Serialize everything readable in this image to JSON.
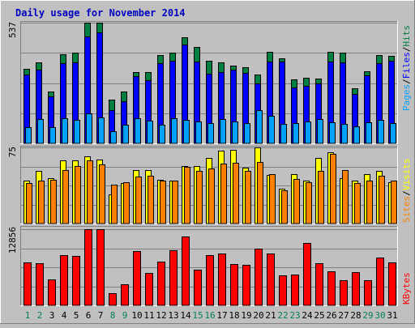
{
  "title": "Daily usage for November 2014",
  "chart_data": [
    {
      "type": "bar",
      "panel": "hits",
      "y_max_label": "537",
      "ylim": [
        0,
        537
      ],
      "grid": true,
      "categories": [
        "1",
        "2",
        "3",
        "4",
        "5",
        "6",
        "7",
        "8",
        "9",
        "10",
        "11",
        "12",
        "13",
        "14",
        "15",
        "16",
        "17",
        "18",
        "19",
        "20",
        "21",
        "22",
        "23",
        "24",
        "25",
        "26",
        "27",
        "28",
        "29",
        "30",
        "31"
      ],
      "weekend_days": [
        "1",
        "2",
        "8",
        "9",
        "15",
        "16",
        "22",
        "23",
        "29",
        "30"
      ],
      "legend": [
        {
          "name": "Pages",
          "color": "#00a0ff"
        },
        {
          "name": "Files",
          "color": "#0000ff"
        },
        {
          "name": "Hits",
          "color": "#008040"
        }
      ],
      "series": [
        {
          "name": "Hits",
          "color": "#008040",
          "values": [
            330,
            362,
            229,
            398,
            402,
            537,
            537,
            195,
            232,
            317,
            317,
            393,
            404,
            472,
            428,
            366,
            360,
            345,
            338,
            306,
            409,
            379,
            284,
            293,
            290,
            407,
            403,
            246,
            320,
            394,
            390
          ]
        },
        {
          "name": "Files",
          "color": "#0000ff",
          "values": [
            306,
            329,
            210,
            355,
            362,
            474,
            492,
            146,
            189,
            300,
            282,
            356,
            367,
            438,
            364,
            309,
            316,
            328,
            313,
            266,
            363,
            364,
            250,
            257,
            268,
            363,
            361,
            221,
            303,
            356,
            366
          ]
        },
        {
          "name": "Pages",
          "color": "#00a0ff",
          "values": [
            72,
            107,
            72,
            111,
            103,
            134,
            116,
            55,
            83,
            113,
            101,
            84,
            112,
            103,
            97,
            89,
            107,
            98,
            91,
            148,
            121,
            85,
            89,
            97,
            108,
            92,
            88,
            75,
            94,
            104,
            91
          ]
        }
      ]
    },
    {
      "type": "bar",
      "panel": "visits",
      "y_max_label": "75",
      "ylim": [
        0,
        75
      ],
      "grid": true,
      "legend": [
        {
          "name": "Sites",
          "color": "#ff8000"
        },
        {
          "name": "Visits",
          "color": "#ffff00"
        }
      ],
      "series": [
        {
          "name": "Visits",
          "color": "#ffff00",
          "values": [
            42,
            52,
            45,
            62,
            62,
            66,
            63,
            29,
            40,
            53,
            53,
            43,
            42,
            57,
            57,
            65,
            72,
            73,
            55,
            75,
            48,
            34,
            49,
            42,
            65,
            70,
            45,
            42,
            49,
            52,
            41
          ]
        },
        {
          "name": "Sites",
          "color": "#ff8000",
          "values": [
            40,
            42,
            43,
            53,
            57,
            62,
            58,
            38,
            41,
            46,
            47,
            42,
            42,
            56,
            52,
            54,
            59,
            60,
            52,
            61,
            49,
            33,
            44,
            41,
            52,
            69,
            53,
            40,
            42,
            47,
            42
          ]
        }
      ]
    },
    {
      "type": "bar",
      "panel": "kbytes",
      "y_max_label": "12856",
      "ylim": [
        0,
        12856
      ],
      "grid": true,
      "legend": [
        {
          "name": "KBytes",
          "color": "#ff0000"
        }
      ],
      "series": [
        {
          "name": "KBytes",
          "color": "#ff0000",
          "values": [
            7284,
            7100,
            4392,
            8530,
            8308,
            12856,
            12856,
            2106,
            3587,
            9186,
            5522,
            7376,
            9254,
            11592,
            6007,
            8530,
            8751,
            6966,
            6799,
            9642,
            8751,
            5077,
            5185,
            10483,
            7141,
            5744,
            4172,
            5581,
            4172,
            8084,
            7284
          ]
        }
      ]
    }
  ]
}
